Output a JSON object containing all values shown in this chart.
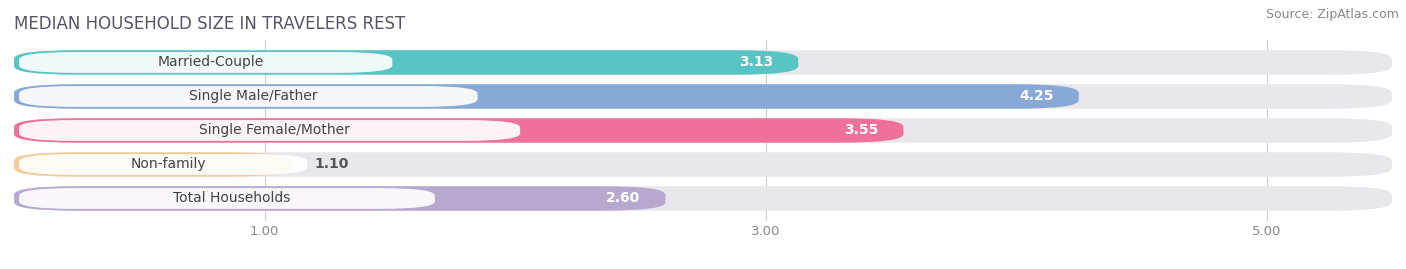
{
  "title": "MEDIAN HOUSEHOLD SIZE IN TRAVELERS REST",
  "source": "Source: ZipAtlas.com",
  "categories": [
    "Married-Couple",
    "Single Male/Father",
    "Single Female/Mother",
    "Non-family",
    "Total Households"
  ],
  "values": [
    3.13,
    4.25,
    3.55,
    1.1,
    2.6
  ],
  "bar_colors": [
    "#45BFBF",
    "#7B9FD4",
    "#F06090",
    "#F5C990",
    "#B09FCC"
  ],
  "xlim_min": 0.0,
  "xlim_max": 5.5,
  "data_min": 0.0,
  "data_max": 5.0,
  "xticks": [
    1.0,
    3.0,
    5.0
  ],
  "xtick_labels": [
    "1.00",
    "3.00",
    "5.00"
  ],
  "title_fontsize": 12,
  "source_fontsize": 9,
  "label_fontsize": 10,
  "value_fontsize": 10,
  "background_color": "#ffffff",
  "bar_background_color": "#e8e8ec",
  "label_pill_color": "#ffffff",
  "gridline_color": "#cccccc"
}
